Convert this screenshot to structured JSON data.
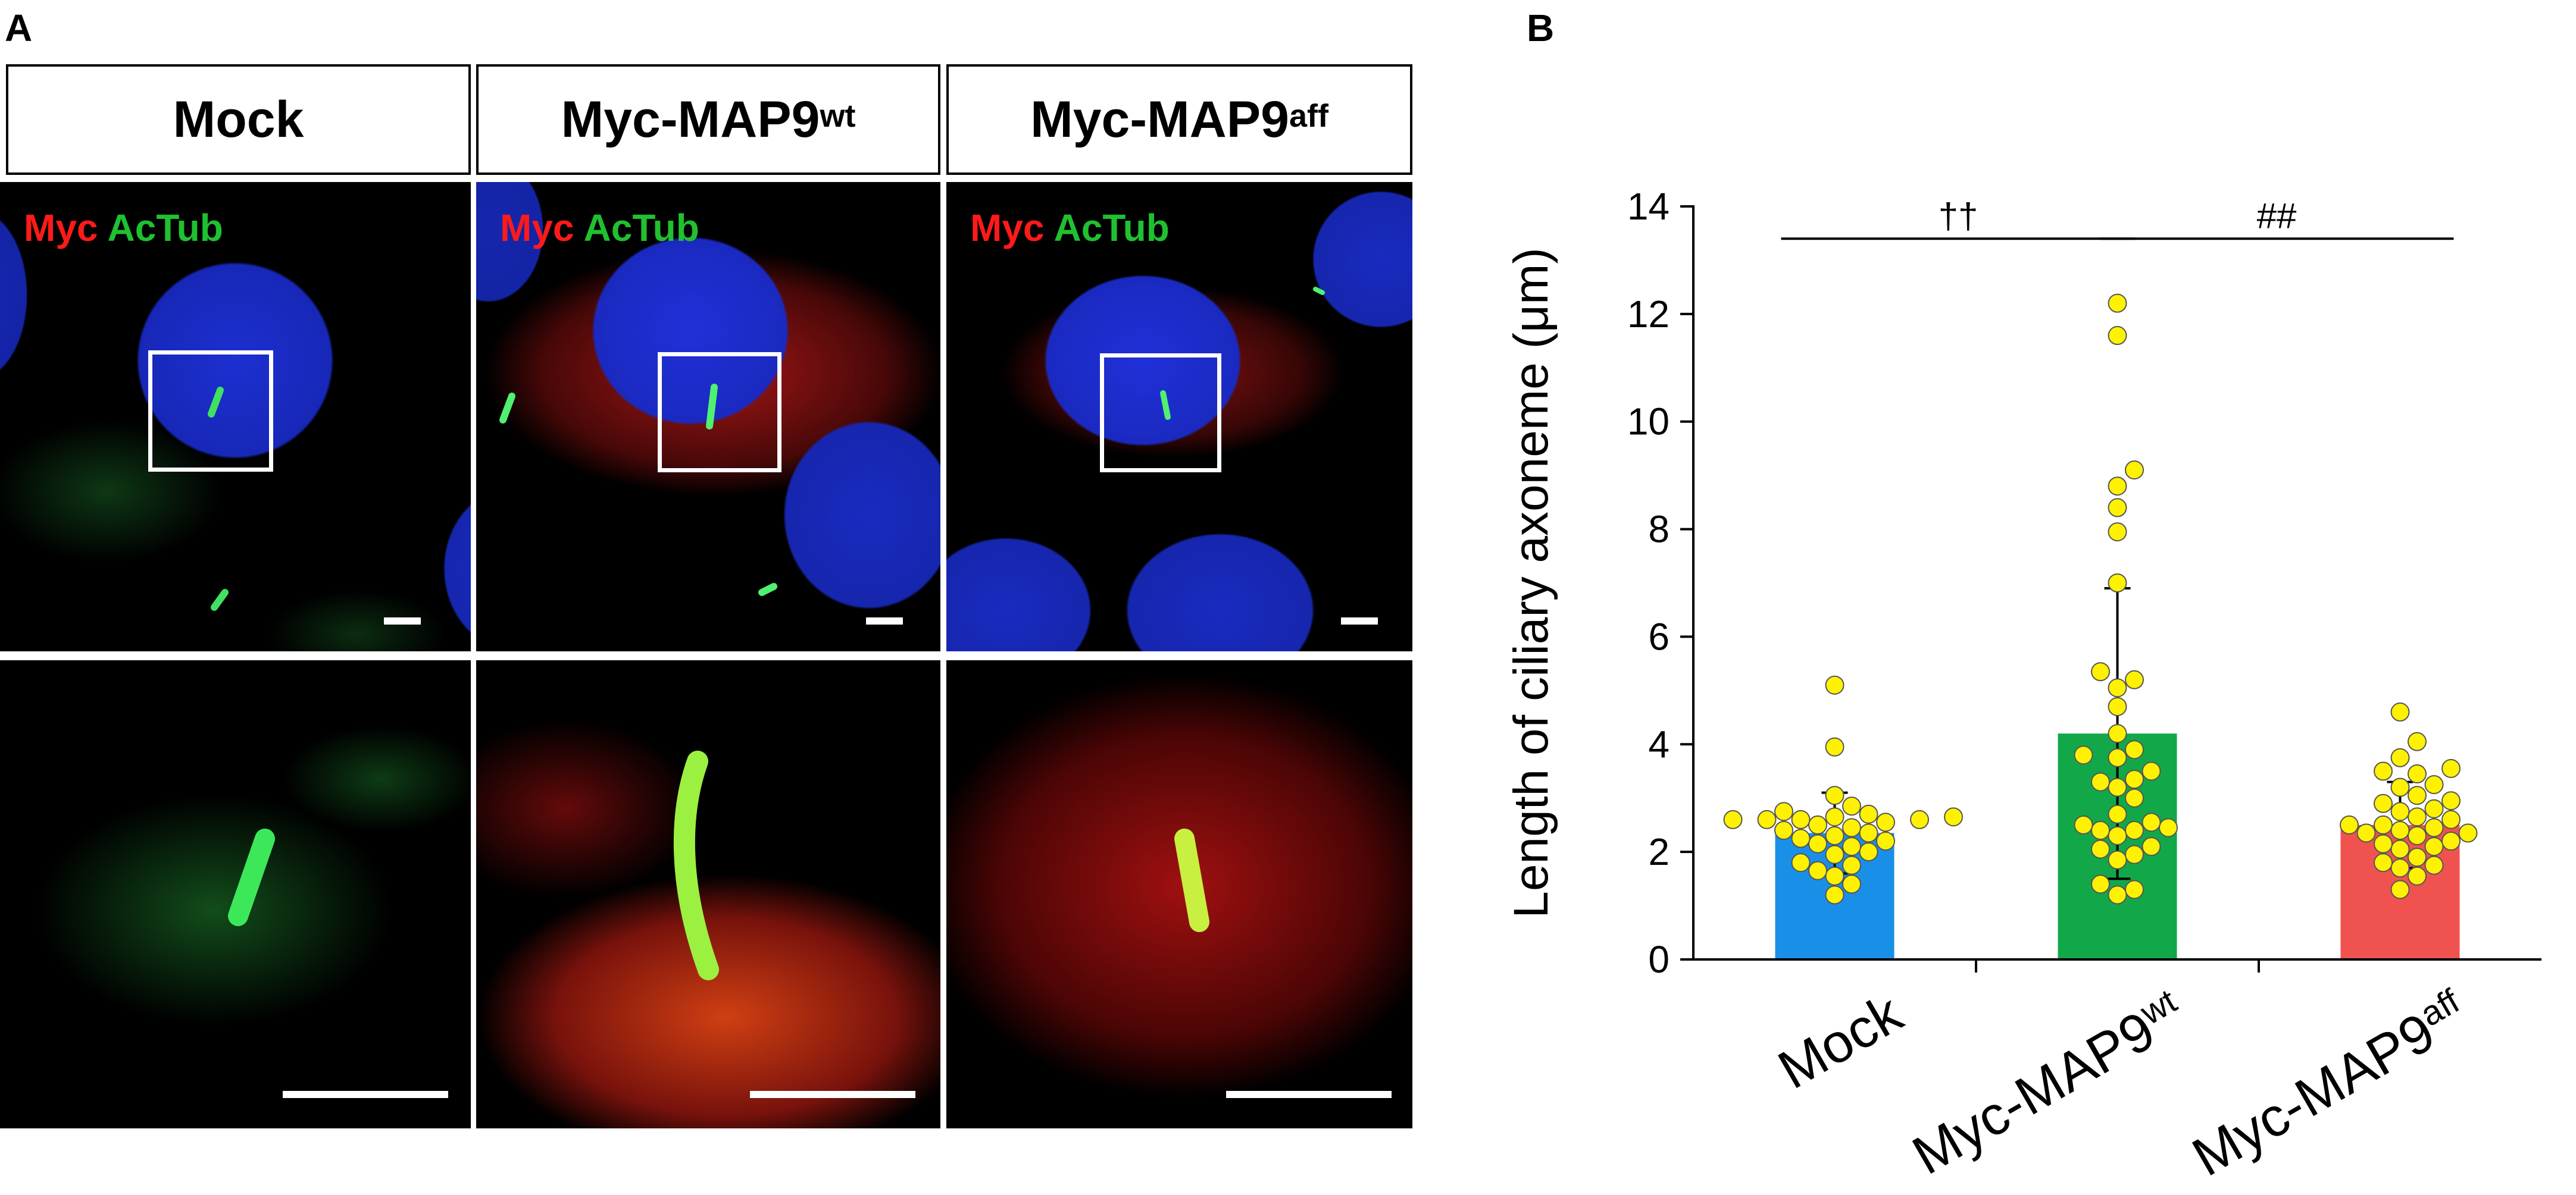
{
  "panel_a": {
    "letter": "A",
    "columns": [
      {
        "title": "Mock",
        "sup": ""
      },
      {
        "title": "Myc-MAP9",
        "sup": "wt"
      },
      {
        "title": "Myc-MAP9",
        "sup": "aff"
      }
    ],
    "channel_labels": {
      "myc": "Myc",
      "actub": "AcTub"
    }
  },
  "panel_b": {
    "letter": "B"
  },
  "chart_data": {
    "type": "bar",
    "categories": [
      "Mock",
      "Myc-MAP9wt",
      "Myc-MAP9aff"
    ],
    "category_labels": [
      {
        "base": "Mock",
        "sup": ""
      },
      {
        "base": "Myc-MAP9",
        "sup": "wt"
      },
      {
        "base": "Myc-MAP9",
        "sup": "aff"
      }
    ],
    "values": [
      2.35,
      4.2,
      2.5
    ],
    "error_sd": [
      0.75,
      2.7,
      0.8
    ],
    "bar_colors": [
      "#1a8fe8",
      "#12a84a",
      "#f0524f"
    ],
    "point_color": "#fff200",
    "points": [
      [
        5.1,
        3.95,
        3.05,
        2.85,
        2.75,
        2.7,
        2.65,
        2.6,
        2.55,
        2.6,
        2.65,
        2.6,
        2.5,
        2.4,
        2.35,
        2.3,
        2.2,
        2.1,
        2.0,
        1.95,
        1.8,
        1.75,
        1.65,
        1.55,
        1.4,
        1.2,
        2.45,
        2.25,
        2.6,
        2.15
      ],
      [
        12.2,
        11.6,
        9.1,
        8.8,
        8.4,
        7.95,
        7.0,
        5.35,
        5.2,
        5.05,
        4.7,
        4.2,
        3.9,
        3.8,
        3.75,
        3.5,
        3.35,
        3.3,
        3.2,
        3.0,
        2.7,
        2.55,
        2.5,
        2.45,
        2.4,
        2.4,
        2.1,
        2.05,
        1.85,
        1.4,
        1.2,
        1.3,
        1.95,
        2.3
      ],
      [
        4.6,
        4.05,
        3.75,
        3.55,
        3.5,
        3.45,
        3.25,
        3.2,
        3.05,
        2.95,
        2.9,
        2.8,
        2.75,
        2.65,
        2.5,
        2.5,
        2.45,
        2.4,
        2.35,
        2.3,
        2.2,
        2.15,
        2.1,
        2.05,
        1.9,
        1.8,
        1.75,
        1.7,
        1.55,
        1.3,
        2.6,
        2.35
      ]
    ],
    "ylabel": "Length of ciliary axoneme (μm)",
    "ylim": [
      0,
      14
    ],
    "yticks": [
      0,
      2,
      4,
      6,
      8,
      10,
      12,
      14
    ],
    "significance": [
      {
        "from": 0,
        "to": 1,
        "label": "††",
        "y": 13.4
      },
      {
        "from": 1,
        "to": 2,
        "label": "##",
        "y": 13.4
      }
    ],
    "grid": false
  }
}
